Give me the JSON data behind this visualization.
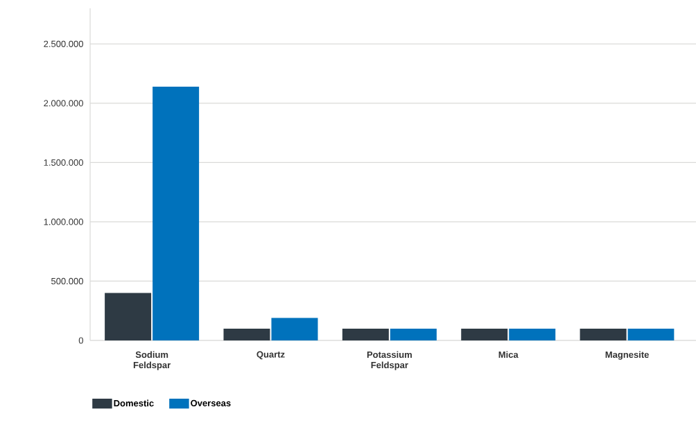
{
  "chart_data": {
    "type": "bar",
    "categories": [
      "Sodium Feldspar",
      "Quartz",
      "Potassium Feldspar",
      "Mica",
      "Magnesite"
    ],
    "series": [
      {
        "name": "Domestic",
        "color": "#2e3a44",
        "values": [
          400000,
          100000,
          100000,
          100000,
          100000
        ]
      },
      {
        "name": "Overseas",
        "color": "#0072bc",
        "values": [
          2140000,
          190000,
          100000,
          100000,
          100000
        ]
      }
    ],
    "ylim": [
      0,
      2800000
    ],
    "yticks": [
      0,
      {
        "value": 500000,
        "label": "500.000"
      },
      {
        "value": 1000000,
        "label": "1.000.000"
      },
      {
        "value": 1500000,
        "label": "1.500.000"
      },
      {
        "value": 2000000,
        "label": "2.000.000"
      },
      {
        "value": 2500000,
        "label": "2.500.000"
      }
    ],
    "grid": "y",
    "legend": "bottom left"
  }
}
